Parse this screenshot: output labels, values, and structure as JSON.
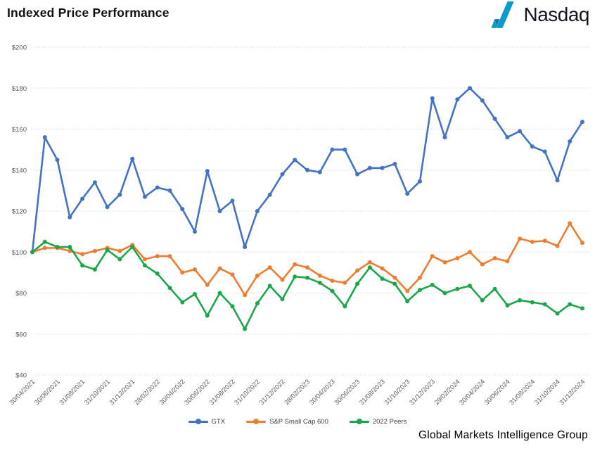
{
  "header": {
    "title": "Indexed Price Performance",
    "logo_text": "Nasdaq"
  },
  "footer": {
    "text": "Global Markets Intelligence Group"
  },
  "colors": {
    "gtx_blue": "#4472C4",
    "sp600_orange": "#ED7D31",
    "peers_green": "#1CA64A",
    "nasdaq_blue": "#0A9BCD",
    "nasdaq_blue_dark": "#0678A6",
    "grid_gray": "#D9D9D9",
    "axis_text_gray": "#595959"
  },
  "chart_data": {
    "type": "line",
    "title": "Indexed Price Performance",
    "xlabel": "",
    "ylabel": "",
    "ylim": [
      40,
      200
    ],
    "y_tick_step": 20,
    "y_tick_prefix": "$",
    "y_tick_labels": [
      "$40",
      "$60",
      "$80",
      "$100",
      "$120",
      "$140",
      "$160",
      "$180",
      "$200"
    ],
    "grid": true,
    "grid_style": "dotted",
    "legend_position": "bottom",
    "x_tick_step": 2,
    "x": [
      "30/04/2021",
      "31/05/2021",
      "30/06/2021",
      "31/07/2021",
      "31/08/2021",
      "30/09/2021",
      "31/10/2021",
      "30/11/2021",
      "31/12/2021",
      "31/01/2022",
      "28/02/2022",
      "31/03/2022",
      "30/04/2022",
      "31/05/2022",
      "30/06/2022",
      "31/07/2022",
      "31/08/2022",
      "30/09/2022",
      "31/10/2022",
      "30/11/2022",
      "31/12/2022",
      "31/01/2023",
      "28/02/2023",
      "31/03/2023",
      "30/04/2023",
      "31/05/2023",
      "30/06/2023",
      "31/07/2023",
      "31/08/2023",
      "30/09/2023",
      "31/10/2023",
      "30/11/2023",
      "31/12/2023",
      "31/01/2024",
      "29/02/2024",
      "31/03/2024",
      "30/04/2024",
      "31/05/2024",
      "30/06/2024",
      "31/07/2024",
      "31/08/2024",
      "30/09/2024",
      "31/10/2024",
      "30/11/2024",
      "31/12/2024"
    ],
    "series": [
      {
        "name": "GTX",
        "color": "#4472C4",
        "values": [
          100,
          156,
          145,
          117,
          126,
          134,
          122,
          128,
          145.5,
          127,
          131.5,
          130,
          121,
          110,
          139.5,
          120,
          125,
          102.5,
          120,
          128,
          138,
          145,
          140,
          139,
          150,
          150,
          138,
          141,
          141,
          143,
          128.5,
          134.5,
          175,
          156,
          174.5,
          180,
          174,
          165,
          156,
          159,
          151.5,
          149,
          135,
          154,
          163.5
        ]
      },
      {
        "name": "S&P Small Cap 600",
        "color": "#ED7D31",
        "values": [
          100,
          102,
          102,
          100.5,
          99,
          100.5,
          102,
          100.5,
          103.5,
          96.5,
          98,
          98,
          90,
          91.5,
          84,
          92,
          89,
          79,
          88.5,
          92.5,
          86.5,
          94,
          92.5,
          88.5,
          86,
          85,
          91,
          95,
          92,
          87.5,
          81,
          87.5,
          98,
          95,
          97,
          100,
          94,
          97,
          95.5,
          106.5,
          105,
          105.5,
          103,
          114,
          104.5
        ]
      },
      {
        "name": "2022 Peers",
        "color": "#1CA64A",
        "values": [
          100,
          105,
          102.5,
          102.5,
          93.5,
          91.5,
          101,
          96.5,
          102.5,
          93.5,
          89.5,
          82.5,
          75.5,
          79.5,
          69,
          80,
          73.5,
          62.5,
          75,
          83.5,
          77,
          88,
          87.5,
          85,
          81,
          73.5,
          84.5,
          92.5,
          87,
          84.5,
          76,
          81.5,
          84,
          80,
          82,
          83.5,
          76.5,
          82,
          74,
          76.5,
          75.5,
          74.5,
          70,
          74.5,
          72.5
        ]
      }
    ]
  }
}
